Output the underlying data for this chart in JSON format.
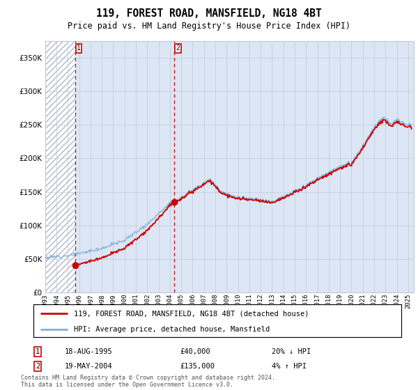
{
  "title": "119, FOREST ROAD, MANSFIELD, NG18 4BT",
  "subtitle": "Price paid vs. HM Land Registry's House Price Index (HPI)",
  "legend_line1": "119, FOREST ROAD, MANSFIELD, NG18 4BT (detached house)",
  "legend_line2": "HPI: Average price, detached house, Mansfield",
  "table_row1_num": "1",
  "table_row1_date": "18-AUG-1995",
  "table_row1_price": "£40,000",
  "table_row1_hpi": "20% ↓ HPI",
  "table_row2_num": "2",
  "table_row2_date": "19-MAY-2004",
  "table_row2_price": "£135,000",
  "table_row2_hpi": "4% ↑ HPI",
  "footnote": "Contains HM Land Registry data © Crown copyright and database right 2024.\nThis data is licensed under the Open Government Licence v3.0.",
  "purchase1_year": 1995.625,
  "purchase1_price": 40000,
  "purchase2_year": 2004.375,
  "purchase2_price": 135000,
  "ylim": [
    0,
    375000
  ],
  "yticks": [
    0,
    50000,
    100000,
    150000,
    200000,
    250000,
    300000,
    350000
  ],
  "plot_bg": "#dce6f5",
  "line_color_red": "#cc0000",
  "line_color_blue": "#7fb0d8",
  "xmin": 1993,
  "xmax": 2025.5
}
